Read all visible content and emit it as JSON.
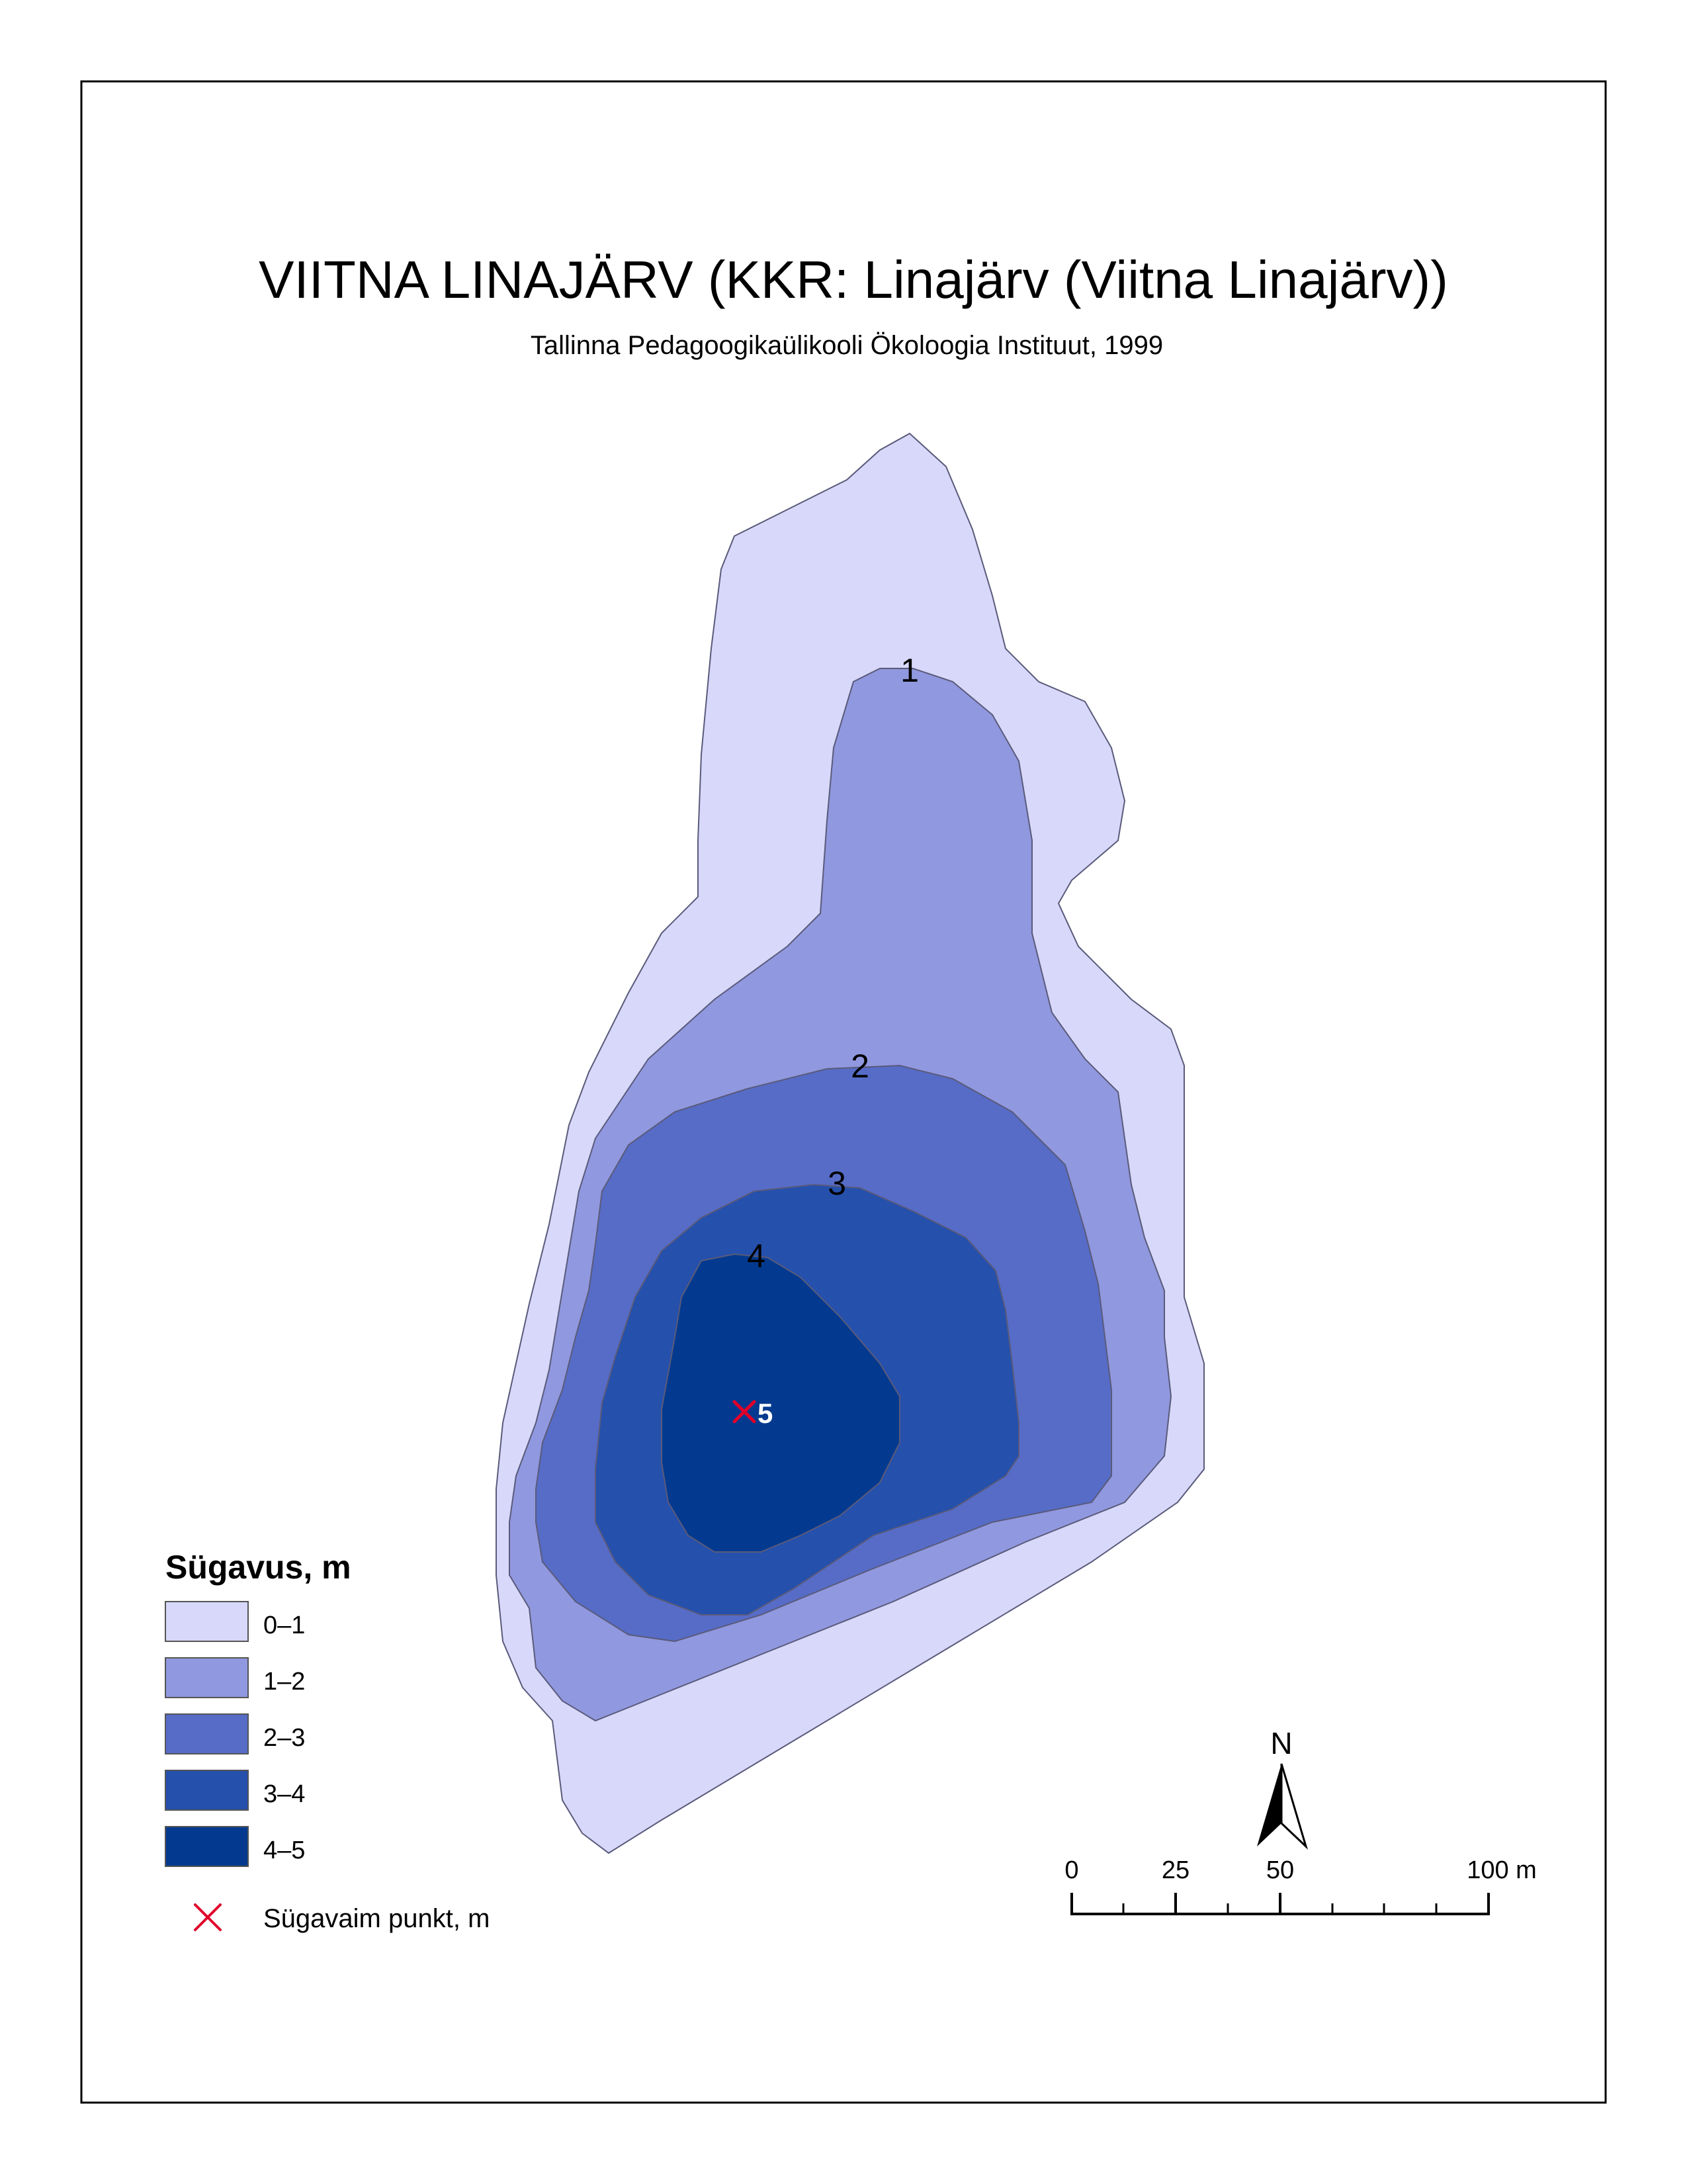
{
  "title": "VIITNA LINAJÄRV (KKR: Linajärv (Viitna Linajärv))",
  "subtitle": "Tallinna Pedagoogikaülikooli Ökoloogia Instituut, 1999",
  "contour_labels": [
    "1",
    "2",
    "3",
    "4"
  ],
  "deepest_point": {
    "value_label": "5",
    "depth_m": 5,
    "marker_icon": "red-x-icon"
  },
  "legend": {
    "title": "Sügavus, m",
    "items": [
      {
        "label": "0–1",
        "color": "#d7d8fa"
      },
      {
        "label": "1–2",
        "color": "#9098df"
      },
      {
        "label": "2–3",
        "color": "#566cc7"
      },
      {
        "label": "3–4",
        "color": "#2550ac"
      },
      {
        "label": "4–5",
        "color": "#033a8f"
      }
    ],
    "marker_label": "Sügavaim punkt, m",
    "marker_color": "#e0002a"
  },
  "north_arrow": {
    "label": "N",
    "icon": "north-arrow-icon"
  },
  "scale_bar": {
    "ticks": [
      "0",
      "25",
      "50",
      "100 m"
    ]
  }
}
